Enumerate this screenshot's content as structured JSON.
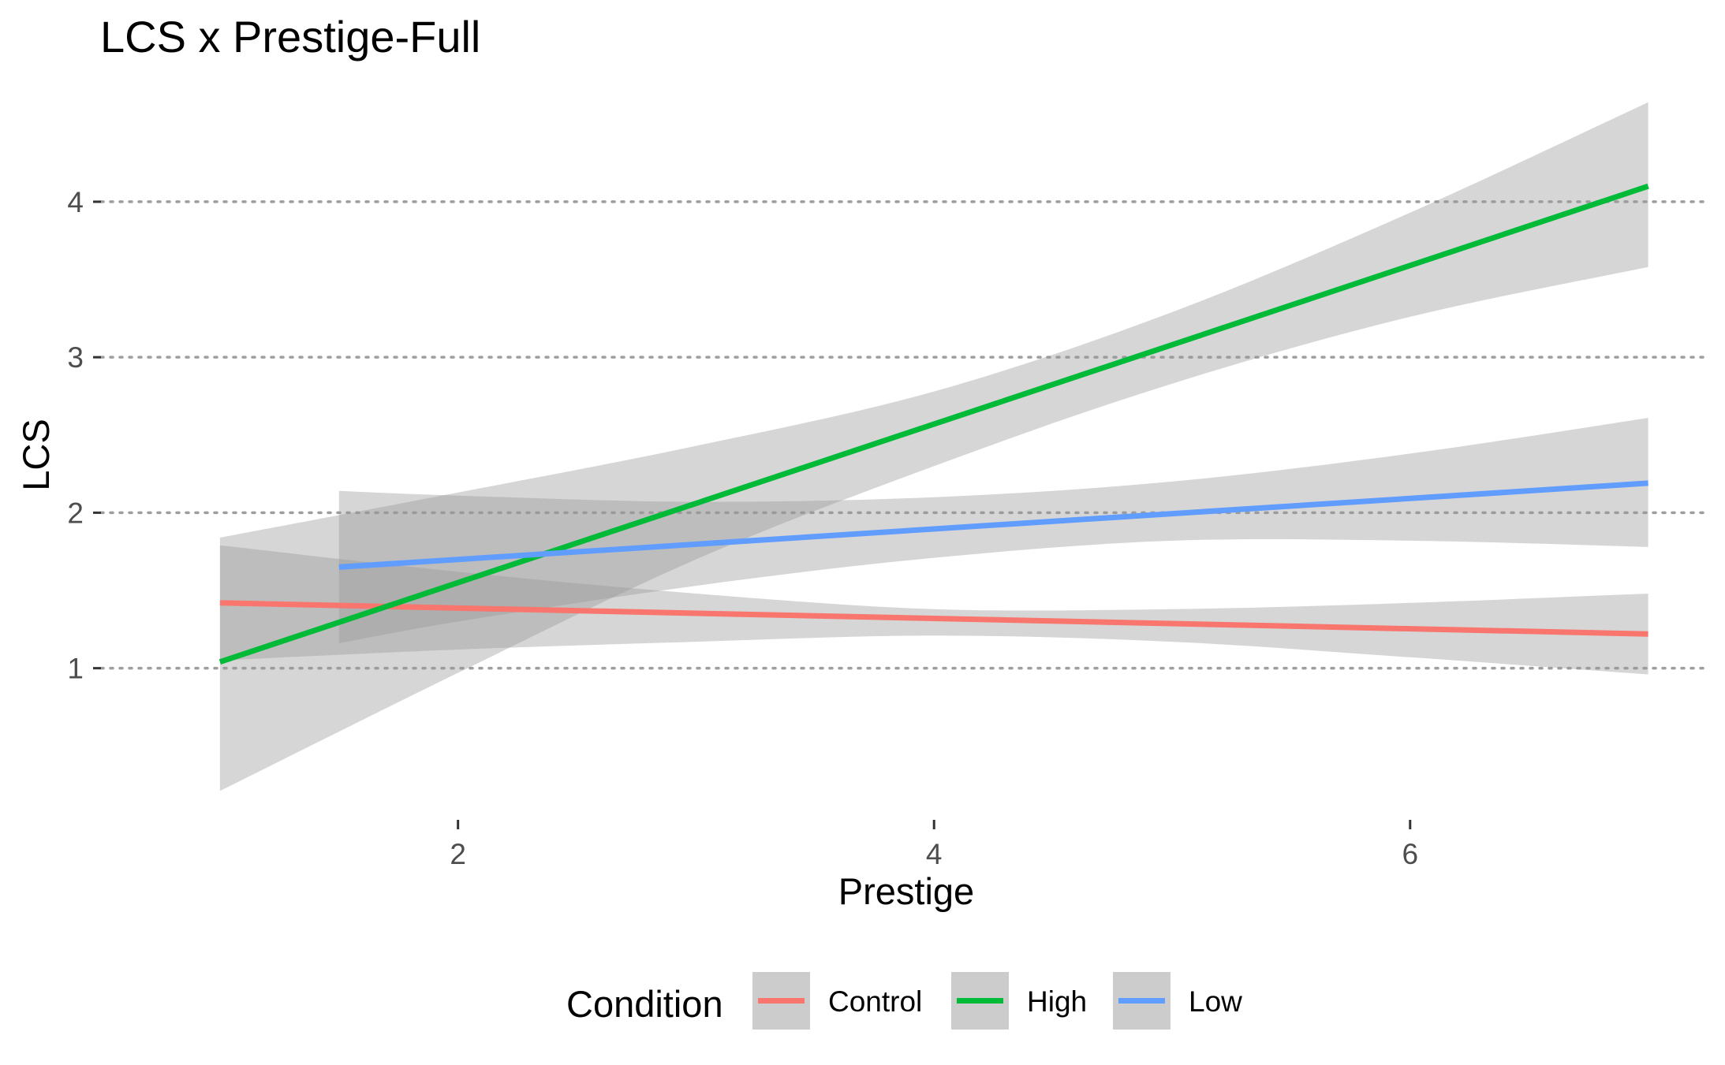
{
  "chart_data": {
    "type": "line",
    "title": "LCS x Prestige-Full",
    "xlabel": "Prestige",
    "ylabel": "LCS",
    "xlim": [
      0.5,
      7.25
    ],
    "ylim": [
      0.05,
      4.75
    ],
    "x_ticks": [
      2,
      4,
      6
    ],
    "y_ticks": [
      1,
      2,
      3,
      4
    ],
    "grid": "horizontal dotted major gridlines only",
    "legend_title": "Condition",
    "legend_position": "bottom",
    "series": [
      {
        "name": "Control",
        "color": "#F8766D",
        "x": [
          1,
          7
        ],
        "y": [
          1.42,
          1.22
        ],
        "ci": {
          "x": [
            1,
            2,
            3,
            4,
            5,
            6,
            7
          ],
          "lower": [
            1.05,
            1.12,
            1.17,
            1.21,
            1.17,
            1.07,
            0.96
          ],
          "upper": [
            1.79,
            1.62,
            1.48,
            1.38,
            1.38,
            1.42,
            1.48
          ]
        }
      },
      {
        "name": "High",
        "color": "#00BA38",
        "x": [
          1,
          7
        ],
        "y": [
          1.04,
          4.1
        ],
        "ci": {
          "x": [
            1,
            2,
            3,
            4,
            5,
            6,
            7
          ],
          "lower": [
            0.21,
            0.97,
            1.7,
            2.3,
            2.83,
            3.26,
            3.58
          ],
          "upper": [
            1.84,
            2.13,
            2.43,
            2.78,
            3.29,
            3.93,
            4.64
          ]
        }
      },
      {
        "name": "Low",
        "color": "#619CFF",
        "x": [
          1.5,
          7
        ],
        "y": [
          1.65,
          2.19
        ],
        "ci": {
          "x": [
            1.5,
            2,
            3,
            4,
            5,
            6,
            7
          ],
          "lower": [
            1.16,
            1.3,
            1.53,
            1.71,
            1.82,
            1.82,
            1.78
          ],
          "upper": [
            2.14,
            2.11,
            2.07,
            2.1,
            2.2,
            2.38,
            2.61
          ]
        }
      }
    ]
  }
}
